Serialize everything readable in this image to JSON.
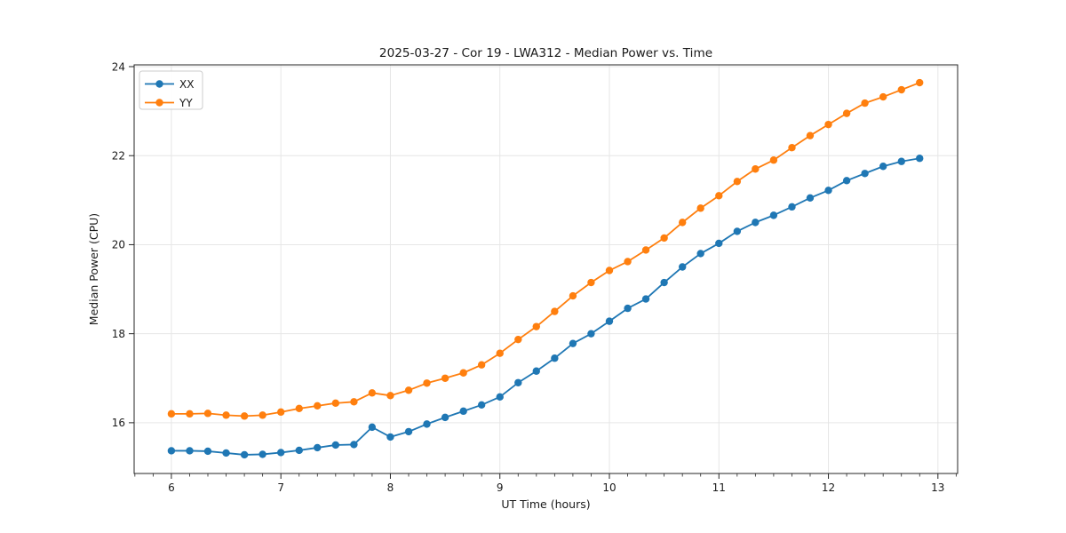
{
  "figure": {
    "background": "#ffffff",
    "spine_color": "#262626",
    "grid_color": "#e6e6e6",
    "text_color": "#1a1a1a"
  },
  "chart_data": {
    "type": "line",
    "title": "2025-03-27 - Cor 19 - LWA312 - Median Power vs. Time",
    "xlabel": "UT Time (hours)",
    "ylabel": "Median Power (CPU)",
    "xlim": [
      5.66,
      13.18
    ],
    "ylim": [
      14.86,
      24.04
    ],
    "x_major_ticks": [
      6,
      7,
      8,
      9,
      10,
      11,
      12,
      13
    ],
    "x_tick_labels": [
      "6",
      "7",
      "8",
      "9",
      "10",
      "11",
      "12",
      "13"
    ],
    "x_minor_tick_interval_hours": 0.1667,
    "y_major_ticks": [
      16,
      18,
      20,
      22,
      24
    ],
    "y_tick_labels": [
      "16",
      "18",
      "20",
      "22",
      "24"
    ],
    "grid": "major gridlines both axes, on",
    "legend_position": "upper left",
    "marker": "circle",
    "x": [
      6.0,
      6.167,
      6.333,
      6.5,
      6.667,
      6.833,
      7.0,
      7.167,
      7.333,
      7.5,
      7.667,
      7.833,
      8.0,
      8.167,
      8.333,
      8.5,
      8.667,
      8.833,
      9.0,
      9.167,
      9.333,
      9.5,
      9.667,
      9.833,
      10.0,
      10.167,
      10.333,
      10.5,
      10.667,
      10.833,
      11.0,
      11.167,
      11.333,
      11.5,
      11.667,
      11.833,
      12.0,
      12.167,
      12.333,
      12.5,
      12.667,
      12.833
    ],
    "series": [
      {
        "name": "XX",
        "color": "#1f77b4",
        "values": [
          15.37,
          15.37,
          15.36,
          15.32,
          15.28,
          15.29,
          15.33,
          15.38,
          15.44,
          15.5,
          15.51,
          15.9,
          15.68,
          15.8,
          15.97,
          16.12,
          16.26,
          16.4,
          16.58,
          16.9,
          17.16,
          17.45,
          17.78,
          18.0,
          18.28,
          18.57,
          18.78,
          19.15,
          19.5,
          19.8,
          20.03,
          20.3,
          20.5,
          20.66,
          20.85,
          21.05,
          21.22,
          21.44,
          21.6,
          21.76,
          21.87,
          21.94
        ]
      },
      {
        "name": "YY",
        "color": "#ff7f0e",
        "values": [
          16.2,
          16.2,
          16.21,
          16.17,
          16.15,
          16.17,
          16.24,
          16.32,
          16.38,
          16.44,
          16.47,
          16.67,
          16.61,
          16.73,
          16.89,
          17.0,
          17.12,
          17.3,
          17.56,
          17.87,
          18.16,
          18.5,
          18.85,
          19.15,
          19.42,
          19.62,
          19.88,
          20.15,
          20.5,
          20.82,
          21.1,
          21.42,
          21.7,
          21.9,
          22.18,
          22.45,
          22.7,
          22.95,
          23.18,
          23.32,
          23.48,
          23.64
        ]
      }
    ]
  }
}
